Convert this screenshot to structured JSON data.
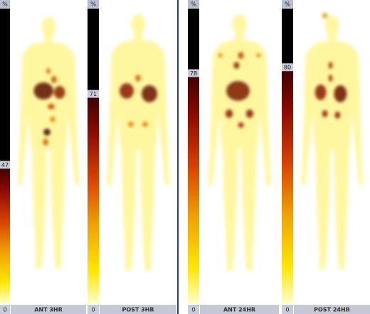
{
  "panels": [
    {
      "scale_unit": "%",
      "scale_max": 47,
      "scale_min": 0,
      "title": "ANT 3HR"
    },
    {
      "scale_unit": "%",
      "scale_max": 71,
      "scale_min": 0,
      "title": "POST 3HR"
    },
    {
      "scale_unit": "%",
      "scale_max": 78,
      "scale_min": 0,
      "title": "ANT 24HR"
    },
    {
      "scale_unit": "%",
      "scale_max": 80,
      "scale_min": 0,
      "title": "POST 24HR"
    }
  ]
}
